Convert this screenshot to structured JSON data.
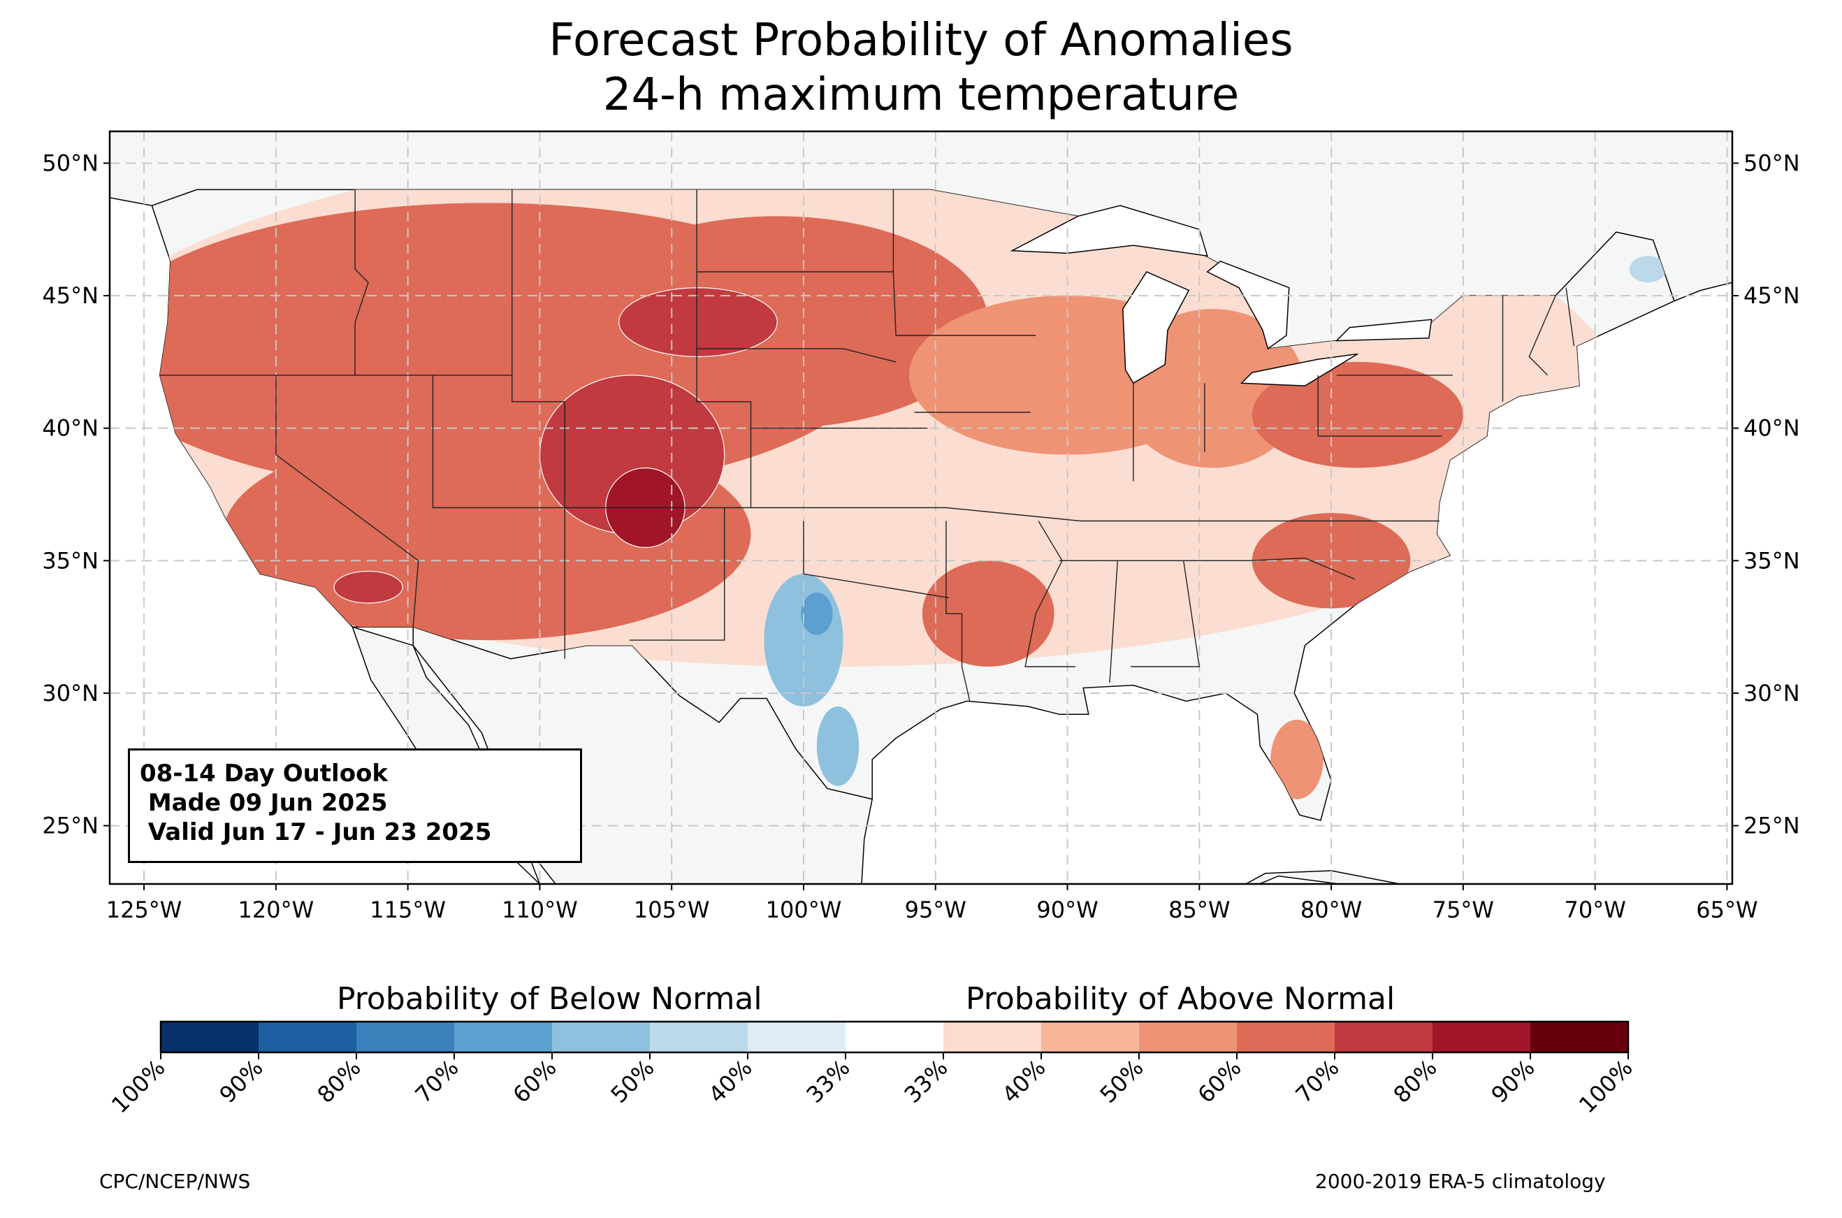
{
  "title": {
    "line1": "Forecast Probability of Anomalies",
    "line2": "24-h maximum temperature"
  },
  "outlook_box": {
    "line1": "08-14 Day Outlook",
    "line2": " Made 09 Jun 2025",
    "line3": " Valid Jun 17 - Jun 23 2025"
  },
  "map": {
    "lon_range": [
      -126.3,
      -64.8
    ],
    "lat_range": [
      22.8,
      51.2
    ],
    "lon_ticks": [
      {
        "value": -125,
        "label": "125°W"
      },
      {
        "value": -120,
        "label": "120°W"
      },
      {
        "value": -115,
        "label": "115°W"
      },
      {
        "value": -110,
        "label": "110°W"
      },
      {
        "value": -105,
        "label": "105°W"
      },
      {
        "value": -100,
        "label": "100°W"
      },
      {
        "value": -95,
        "label": "95°W"
      },
      {
        "value": -90,
        "label": "90°W"
      },
      {
        "value": -85,
        "label": "85°W"
      },
      {
        "value": -80,
        "label": "80°W"
      },
      {
        "value": -75,
        "label": "75°W"
      },
      {
        "value": -70,
        "label": "70°W"
      },
      {
        "value": -65,
        "label": "65°W"
      }
    ],
    "lat_ticks": [
      {
        "value": 50,
        "label": "50°N"
      },
      {
        "value": 45,
        "label": "45°N"
      },
      {
        "value": 40,
        "label": "40°N"
      },
      {
        "value": 35,
        "label": "35°N"
      },
      {
        "value": 30,
        "label": "30°N"
      },
      {
        "value": 25,
        "label": "25°N"
      }
    ],
    "gridlines": true,
    "land_color": "#f5f6f6",
    "ocean_color": "#ffffff"
  },
  "colorbar": {
    "below_title": "Probability of Below Normal",
    "above_title": "Probability of Above Normal",
    "tick_labels": [
      "100%",
      "90%",
      "80%",
      "70%",
      "60%",
      "50%",
      "40%",
      "33%",
      "33%",
      "40%",
      "50%",
      "60%",
      "70%",
      "80%",
      "90%",
      "100%"
    ],
    "colors": [
      "#08306b",
      "#1e5ea0",
      "#3a80bb",
      "#5ba0cf",
      "#8ec1de",
      "#bcd8eb",
      "#dfebf5",
      "#ffffff",
      "#fcdccd",
      "#f7b59a",
      "#ef9375",
      "#dd6b57",
      "#c13a3f",
      "#a01527",
      "#67000d"
    ]
  },
  "credits": {
    "left": "CPC/NCEP/NWS",
    "right": "2000-2019 ERA-5 climatology"
  },
  "forecast_regions": [
    {
      "name": "Northern Rockies / Great Basin / West",
      "category": "above",
      "level": 0.6,
      "center": [
        -112,
        43
      ],
      "rx": 15,
      "ry": 5.5
    },
    {
      "name": "Southwest",
      "category": "above",
      "level": 0.6,
      "center": [
        -112,
        36
      ],
      "rx": 10,
      "ry": 4
    },
    {
      "name": "Northern Plains",
      "category": "above",
      "level": 0.6,
      "center": [
        -101,
        44
      ],
      "rx": 8,
      "ry": 4
    },
    {
      "name": "Central Rockies core",
      "category": "above",
      "level": 0.7,
      "center": [
        -106.5,
        39
      ],
      "rx": 3.5,
      "ry": 3
    },
    {
      "name": "Southern Colorado / New Mexico",
      "category": "above",
      "level": 0.8,
      "center": [
        -106,
        37
      ],
      "rx": 1.5,
      "ry": 1.5
    },
    {
      "name": "Wyoming / South Dakota",
      "category": "above",
      "level": 0.7,
      "center": [
        -104,
        44
      ],
      "rx": 3,
      "ry": 1.3
    },
    {
      "name": "Southern California",
      "category": "above",
      "level": 0.7,
      "center": [
        -116.5,
        34
      ],
      "rx": 1.3,
      "ry": 0.6
    },
    {
      "name": "Upper Midwest",
      "category": "above",
      "level": 0.5,
      "center": [
        -90,
        42
      ],
      "rx": 6,
      "ry": 3
    },
    {
      "name": "Michigan / Ohio Valley",
      "category": "above",
      "level": 0.5,
      "center": [
        -84.5,
        41.5
      ],
      "rx": 3.5,
      "ry": 3
    },
    {
      "name": "Mid-Atlantic / Pennsylvania",
      "category": "above",
      "level": 0.6,
      "center": [
        -79,
        40.5
      ],
      "rx": 4,
      "ry": 2
    },
    {
      "name": "Carolinas",
      "category": "above",
      "level": 0.6,
      "center": [
        -80,
        35
      ],
      "rx": 3,
      "ry": 1.8
    },
    {
      "name": "Arkansas / Lower Mississippi",
      "category": "above",
      "level": 0.6,
      "center": [
        -93,
        33
      ],
      "rx": 2.5,
      "ry": 2
    },
    {
      "name": "Florida peninsula",
      "category": "above",
      "level": 0.5,
      "center": [
        -81.3,
        27.5
      ],
      "rx": 1,
      "ry": 1.5
    },
    {
      "name": "Texas",
      "category": "below",
      "level": 0.5,
      "center": [
        -100,
        32
      ],
      "rx": 1.5,
      "ry": 2.5
    },
    {
      "name": "South Texas",
      "category": "below",
      "level": 0.5,
      "center": [
        -98.7,
        28
      ],
      "rx": 0.8,
      "ry": 1.5
    },
    {
      "name": "Central Texas core",
      "category": "below",
      "level": 0.6,
      "center": [
        -99.5,
        33
      ],
      "rx": 0.6,
      "ry": 0.8
    },
    {
      "name": "Maine",
      "category": "below",
      "level": 0.4,
      "center": [
        -68,
        46
      ],
      "rx": 0.7,
      "ry": 0.5
    }
  ]
}
